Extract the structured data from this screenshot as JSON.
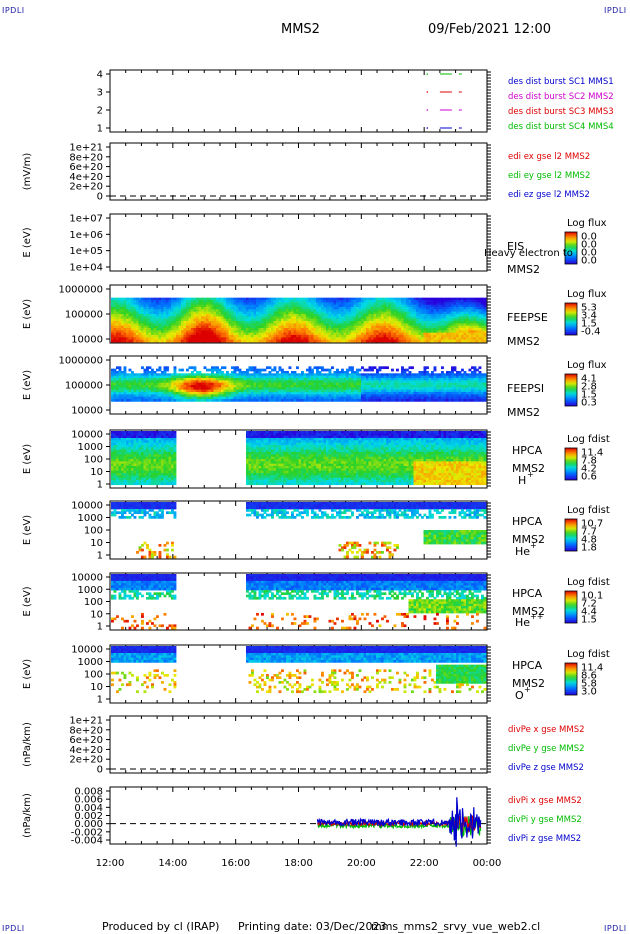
{
  "corners": {
    "tl": "IPDLI",
    "tr": "IPDLI",
    "bl": "IPDLI",
    "br": "IPDLI"
  },
  "header": {
    "spacecraft": "MMS2",
    "date": "09/Feb/2021 12:00"
  },
  "footer": {
    "produced": "Produced by cl (IRAP)",
    "printing": "Printing date: 03/Dec/2023",
    "script": "mms_mms2_srvy_vue_web2.cl"
  },
  "x_ticks": [
    "12:00",
    "14:00",
    "16:00",
    "18:00",
    "20:00",
    "22:00",
    "00:00"
  ],
  "colors": {
    "blue": "#0000cc",
    "red": "#dd0000",
    "magenta": "#cc00cc",
    "green": "#00bb00"
  },
  "chart_data": [
    {
      "type": "line",
      "panel": "burst",
      "yticks": [
        "4",
        "3",
        "2",
        "1"
      ],
      "legend": [
        {
          "text": "des dist burst SC1 MMS1",
          "color": "#0000cc"
        },
        {
          "text": "des dist burst SC2 MMS2",
          "color": "#cc00cc"
        },
        {
          "text": "des dist burst SC3 MMS3",
          "color": "#dd0000"
        },
        {
          "text": "des dist burst SC4 MMS4",
          "color": "#00bb00"
        }
      ],
      "series": [
        {
          "y": 4,
          "color": "#00bb00",
          "x": [
            22.5,
            23.2
          ]
        },
        {
          "y": 3,
          "color": "#dd0000",
          "x": [
            22.5,
            23.2
          ]
        },
        {
          "y": 2,
          "color": "#cc00cc",
          "x": [
            22.5,
            23.2
          ]
        },
        {
          "y": 1,
          "color": "#0000cc",
          "x": [
            22.5,
            23.2
          ]
        }
      ]
    },
    {
      "type": "line",
      "panel": "edi",
      "ylabel": "(mV/m)",
      "yticks": [
        "1e+21",
        "8e+20",
        "6e+20",
        "4e+20",
        "2e+20",
        "0"
      ],
      "legend": [
        {
          "text": "edi ex gse l2 MMS2",
          "color": "#dd0000"
        },
        {
          "text": "edi ey gse l2 MMS2",
          "color": "#00bb00"
        },
        {
          "text": "edi ez gse l2 MMS2",
          "color": "#0000cc"
        }
      ]
    },
    {
      "type": "heatmap",
      "panel": "eis",
      "ylabel": "E (eV)",
      "yticks": [
        "1e+07",
        "1e+06",
        "1e+05",
        "1e+04"
      ],
      "labels": [
        "EIS",
        "MMS2"
      ],
      "overlay": "Heavy electron to",
      "cbar_title": "Log flux",
      "cbar_ticks": [
        "0.0",
        "0.0",
        "0.0",
        "0.0"
      ]
    },
    {
      "type": "heatmap",
      "panel": "feepse",
      "ylabel": "E (eV)",
      "yticks": [
        "1000000",
        "100000",
        "10000"
      ],
      "labels": [
        "FEEPSE",
        "MMS2"
      ],
      "cbar_title": "Log flux",
      "cbar_ticks": [
        "5.3",
        "3.4",
        "1.5",
        "-0.4"
      ]
    },
    {
      "type": "heatmap",
      "panel": "feepsi",
      "ylabel": "E (eV)",
      "yticks": [
        "1000000",
        "100000",
        "10000"
      ],
      "labels": [
        "FEEPSI",
        "MMS2"
      ],
      "cbar_title": "Log flux",
      "cbar_ticks": [
        "4.1",
        "2.8",
        "1.5",
        "0.3"
      ]
    },
    {
      "type": "heatmap",
      "panel": "hpca_h",
      "ylabel": "E (eV)",
      "yticks": [
        "10000",
        "1000",
        "100",
        "10",
        "1"
      ],
      "labels": [
        "HPCA",
        "MMS2"
      ],
      "species": "H",
      "charge": "+",
      "cbar_title": "Log fdist",
      "cbar_ticks": [
        "11.4",
        "7.8",
        "4.2",
        "0.6"
      ],
      "gap": [
        14.1,
        16.3
      ]
    },
    {
      "type": "heatmap",
      "panel": "hpca_he",
      "ylabel": "E (eV)",
      "yticks": [
        "10000",
        "1000",
        "100",
        "10",
        "1"
      ],
      "labels": [
        "HPCA",
        "MMS2"
      ],
      "species": "He",
      "charge": "+",
      "cbar_title": "Log fdist",
      "cbar_ticks": [
        "10.7",
        "7.7",
        "4.8",
        "1.8"
      ],
      "gap": [
        14.1,
        16.3
      ]
    },
    {
      "type": "heatmap",
      "panel": "hpca_he2",
      "ylabel": "E (eV)",
      "yticks": [
        "10000",
        "1000",
        "100",
        "10",
        "1"
      ],
      "labels": [
        "HPCA",
        "MMS2"
      ],
      "species": "He",
      "charge": "++",
      "cbar_title": "Log fdist",
      "cbar_ticks": [
        "10.1",
        "7.2",
        "4.4",
        "1.5"
      ],
      "gap": [
        14.1,
        16.3
      ]
    },
    {
      "type": "heatmap",
      "panel": "hpca_o",
      "ylabel": "E (eV)",
      "yticks": [
        "10000",
        "1000",
        "100",
        "10",
        "1"
      ],
      "labels": [
        "HPCA",
        "MMS2"
      ],
      "species": "O",
      "charge": "+",
      "cbar_title": "Log fdist",
      "cbar_ticks": [
        "11.4",
        "8.6",
        "5.8",
        "3.0"
      ],
      "gap": [
        14.1,
        16.3
      ]
    },
    {
      "type": "line",
      "panel": "divpe",
      "ylabel": "(nPa/km)",
      "yticks": [
        "1e+21",
        "8e+20",
        "6e+20",
        "4e+20",
        "2e+20",
        "0"
      ],
      "legend": [
        {
          "text": "divPe x gse MMS2",
          "color": "#dd0000"
        },
        {
          "text": "divPe y gse MMS2",
          "color": "#00bb00"
        },
        {
          "text": "divPe z gse MMS2",
          "color": "#0000cc"
        }
      ]
    },
    {
      "type": "line",
      "panel": "divpi",
      "ylabel": "(nPa/km)",
      "yticks": [
        "0.008",
        "0.006",
        "0.004",
        "0.002",
        "0.000",
        "-0.002",
        "-0.004"
      ],
      "ylim": [
        -0.005,
        0.009
      ],
      "data_start": 18.6,
      "legend": [
        {
          "text": "divPi x gse MMS2",
          "color": "#dd0000"
        },
        {
          "text": "divPi y gse MMS2",
          "color": "#00bb00"
        },
        {
          "text": "divPi z gse MMS2",
          "color": "#0000cc"
        }
      ]
    }
  ]
}
